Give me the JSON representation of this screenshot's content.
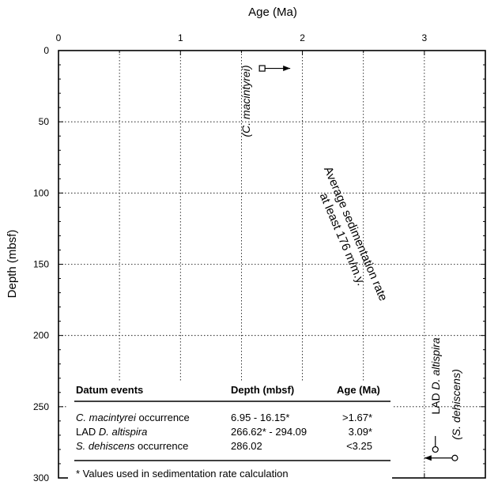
{
  "chart_data": {
    "type": "scatter",
    "xlabel": "Age (Ma)",
    "ylabel": "Depth (mbsf)",
    "xlim": [
      0,
      3.5
    ],
    "ylim": [
      300,
      0
    ],
    "x_ticks": [
      0,
      1,
      2,
      3
    ],
    "y_ticks": [
      0,
      50,
      100,
      150,
      200,
      250,
      300
    ],
    "x_tick_labels": [
      "0",
      "1",
      "2",
      "3"
    ],
    "y_tick_labels": [
      "0",
      "50",
      "100",
      "150",
      "200",
      "250",
      "300"
    ],
    "grid": true,
    "series": [
      {
        "name": "C. macintyrei",
        "label": "(C. macintyrei)",
        "marker": "open-square",
        "x": 1.67,
        "y": 12.5,
        "arrow_direction": "right",
        "arrow_to_x": 1.9
      },
      {
        "name": "LAD D. altispira",
        "label_prefix": "LAD ",
        "label_italic": "D. altispira",
        "marker": "open-circle",
        "x": 3.09,
        "y": 280,
        "tick_direction": "up"
      },
      {
        "name": "S. dehiscens",
        "label": "(S. dehiscens)",
        "marker": "open-circle",
        "x": 3.25,
        "y": 286,
        "arrow_direction": "left",
        "arrow_to_x": 3.0
      }
    ],
    "annotations": [
      {
        "line1": "Average sedimentation rate",
        "line2": "at least 176 m/m.y."
      }
    ],
    "table": {
      "headers": [
        "Datum events",
        "Depth (mbsf)",
        "Age (Ma)"
      ],
      "rows": [
        {
          "event_italic": "C. macintyrei",
          "event_rest": " occurrence",
          "depth": "6.95 - 16.15*",
          "age": ">1.67*"
        },
        {
          "event_prefix": "LAD ",
          "event_italic": "D. altispira",
          "depth": "266.62* - 294.09",
          "age": "3.09*"
        },
        {
          "event_italic": "S. dehiscens",
          "event_rest": " occurrence",
          "depth": "286.02",
          "age": "<3.25"
        }
      ],
      "footnote": "* Values used in sedimentation rate calculation"
    }
  }
}
